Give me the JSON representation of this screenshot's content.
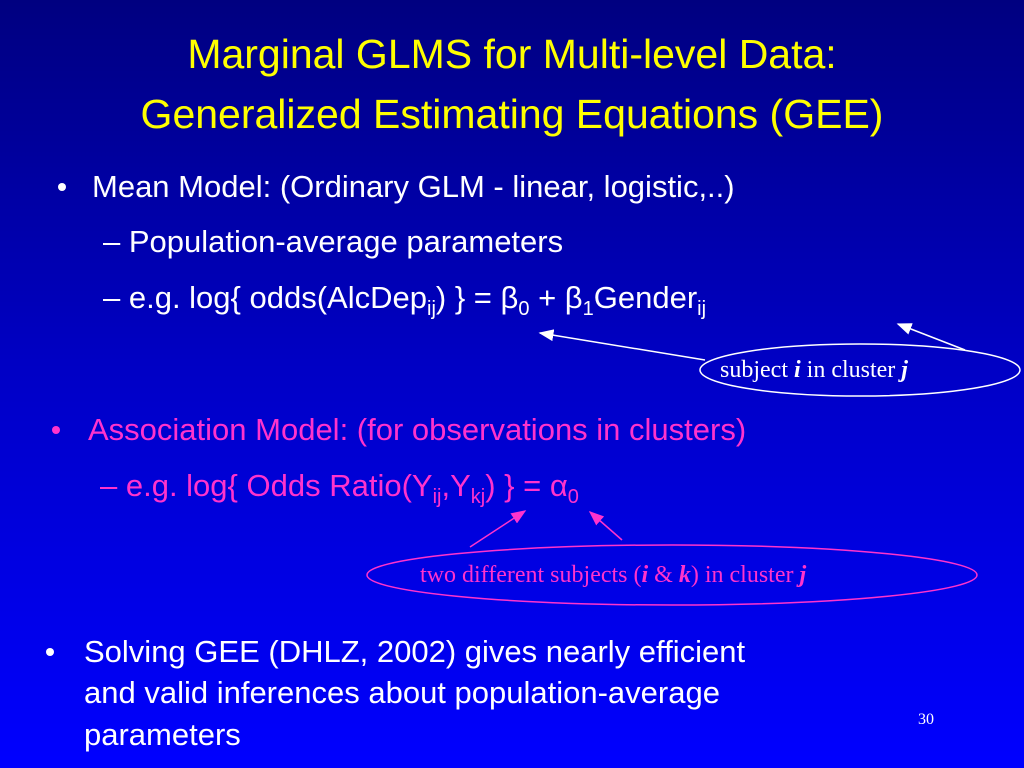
{
  "title": {
    "lines": [
      "Marginal GLMS for Multi-level Data:",
      "Generalized Estimating Equations (GEE)"
    ]
  },
  "bullets": [
    {
      "text": "Mean Model: (Ordinary GLM - linear, logistic,..)",
      "subitems": [
        {
          "parts": [
            {
              "text": "– Population-average parameters"
            }
          ]
        },
        {
          "parts": [
            {
              "text": "– e.g. log{ odds(AlcDep"
            },
            {
              "sub": "ij"
            },
            {
              "text": ") } = β"
            },
            {
              "sub": "0"
            },
            {
              "text": " + β"
            },
            {
              "sub": "1"
            },
            {
              "text": "Gender"
            },
            {
              "sub": "ij"
            }
          ]
        }
      ],
      "callout": {
        "parts": [
          {
            "text": "subject "
          },
          {
            "em": "i"
          },
          {
            "text": " in cluster "
          },
          {
            "em": "j"
          }
        ]
      }
    },
    {
      "text": "Association Model:  (for observations in clusters)",
      "subitems": [
        {
          "parts": [
            {
              "text": "– e.g. log{ Odds Ratio(Y"
            },
            {
              "sub": "ij"
            },
            {
              "text": ",Y"
            },
            {
              "sub": "kj"
            },
            {
              "text": ") } = α"
            },
            {
              "sub": "0"
            }
          ]
        }
      ],
      "callout": {
        "parts": [
          {
            "text": "two different subjects ("
          },
          {
            "em": "i"
          },
          {
            "text": " & "
          },
          {
            "em": "k"
          },
          {
            "text": ") in cluster "
          },
          {
            "em": "j"
          }
        ]
      }
    },
    {
      "lines": [
        "Solving GEE (DHLZ, 2002) gives nearly efficient",
        "and valid inferences about population-average",
        "parameters"
      ]
    }
  ],
  "page_number": "30"
}
